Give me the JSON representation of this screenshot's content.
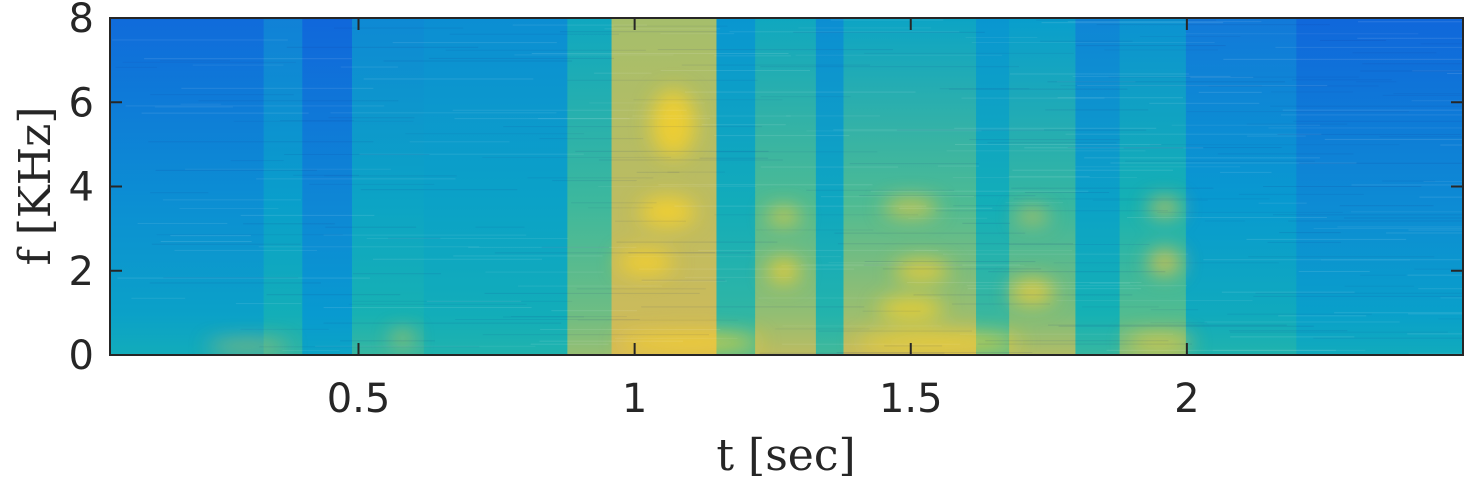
{
  "chart_data": {
    "type": "heatmap",
    "title": "",
    "xlabel": "t [sec]",
    "ylabel": "f [KHz]",
    "xlim": [
      0.05,
      2.5
    ],
    "ylim": [
      0,
      8
    ],
    "xticks": [
      0.5,
      1,
      1.5,
      2
    ],
    "xtick_labels": [
      "0.5",
      "1",
      "1.5",
      "2"
    ],
    "yticks": [
      0,
      2,
      4,
      6,
      8
    ],
    "ytick_labels": [
      "0",
      "2",
      "4",
      "6",
      "8"
    ],
    "colormap": "parula",
    "colorbar": false,
    "grid": false,
    "colors": {
      "low": "#3a55d9",
      "mid_low": "#2e9fdc",
      "mid": "#3fc2a8",
      "mid_high": "#9fca4a",
      "high": "#f4c62f"
    },
    "segments": [
      {
        "t_start": 0.05,
        "t_end": 0.33,
        "level_low": 0.55,
        "level_high": 0.22
      },
      {
        "t_start": 0.33,
        "t_end": 0.4,
        "level_low": 0.62,
        "level_high": 0.32
      },
      {
        "t_start": 0.4,
        "t_end": 0.49,
        "level_low": 0.5,
        "level_high": 0.2
      },
      {
        "t_start": 0.49,
        "t_end": 0.62,
        "level_low": 0.64,
        "level_high": 0.36
      },
      {
        "t_start": 0.62,
        "t_end": 0.88,
        "level_low": 0.6,
        "level_high": 0.38
      },
      {
        "t_start": 0.88,
        "t_end": 0.96,
        "level_low": 0.78,
        "level_high": 0.52
      },
      {
        "t_start": 0.96,
        "t_end": 1.15,
        "level_low": 0.88,
        "level_high": 0.8
      },
      {
        "t_start": 1.15,
        "t_end": 1.22,
        "level_low": 0.68,
        "level_high": 0.42
      },
      {
        "t_start": 1.22,
        "t_end": 1.33,
        "level_low": 0.84,
        "level_high": 0.52
      },
      {
        "t_start": 1.33,
        "t_end": 1.38,
        "level_low": 0.66,
        "level_high": 0.38
      },
      {
        "t_start": 1.38,
        "t_end": 1.62,
        "level_low": 0.86,
        "level_high": 0.5
      },
      {
        "t_start": 1.62,
        "t_end": 1.68,
        "level_low": 0.7,
        "level_high": 0.42
      },
      {
        "t_start": 1.68,
        "t_end": 1.8,
        "level_low": 0.82,
        "level_high": 0.46
      },
      {
        "t_start": 1.8,
        "t_end": 1.88,
        "level_low": 0.64,
        "level_high": 0.34
      },
      {
        "t_start": 1.88,
        "t_end": 2.0,
        "level_low": 0.76,
        "level_high": 0.4
      },
      {
        "t_start": 2.0,
        "t_end": 2.2,
        "level_low": 0.6,
        "level_high": 0.28
      },
      {
        "t_start": 2.2,
        "t_end": 2.5,
        "level_low": 0.54,
        "level_high": 0.2
      }
    ],
    "energy_regions": [
      {
        "t_center": 1.07,
        "f_center": 5.5,
        "t_width": 0.08,
        "f_height": 1.6,
        "intensity": 0.95
      },
      {
        "t_center": 1.06,
        "f_center": 3.4,
        "t_width": 0.1,
        "f_height": 0.7,
        "intensity": 1.0
      },
      {
        "t_center": 1.02,
        "f_center": 2.2,
        "t_width": 0.1,
        "f_height": 0.6,
        "intensity": 0.95
      },
      {
        "t_center": 1.27,
        "f_center": 3.3,
        "t_width": 0.06,
        "f_height": 0.4,
        "intensity": 0.85
      },
      {
        "t_center": 1.27,
        "f_center": 2.0,
        "t_width": 0.06,
        "f_height": 0.6,
        "intensity": 0.9
      },
      {
        "t_center": 1.5,
        "f_center": 3.5,
        "t_width": 0.1,
        "f_height": 0.4,
        "intensity": 0.8
      },
      {
        "t_center": 1.52,
        "f_center": 2.0,
        "t_width": 0.1,
        "f_height": 0.5,
        "intensity": 0.9
      },
      {
        "t_center": 1.5,
        "f_center": 1.1,
        "t_width": 0.12,
        "f_height": 0.5,
        "intensity": 0.95
      },
      {
        "t_center": 1.72,
        "f_center": 3.3,
        "t_width": 0.06,
        "f_height": 0.3,
        "intensity": 0.7
      },
      {
        "t_center": 1.72,
        "f_center": 1.5,
        "t_width": 0.08,
        "f_height": 0.6,
        "intensity": 0.85
      },
      {
        "t_center": 1.96,
        "f_center": 3.5,
        "t_width": 0.06,
        "f_height": 0.4,
        "intensity": 0.75
      },
      {
        "t_center": 1.96,
        "f_center": 2.2,
        "t_width": 0.06,
        "f_height": 0.6,
        "intensity": 0.7
      },
      {
        "t_center": 1.1,
        "f_center": 0.3,
        "t_width": 0.26,
        "f_height": 0.4,
        "intensity": 1.0
      },
      {
        "t_center": 1.55,
        "f_center": 0.3,
        "t_width": 0.3,
        "f_height": 0.4,
        "intensity": 1.0
      },
      {
        "t_center": 1.95,
        "f_center": 0.3,
        "t_width": 0.12,
        "f_height": 0.35,
        "intensity": 0.85
      },
      {
        "t_center": 0.58,
        "f_center": 0.4,
        "t_width": 0.04,
        "f_height": 0.3,
        "intensity": 0.8
      },
      {
        "t_center": 0.3,
        "f_center": 0.2,
        "t_width": 0.15,
        "f_height": 0.2,
        "intensity": 0.7
      }
    ]
  }
}
